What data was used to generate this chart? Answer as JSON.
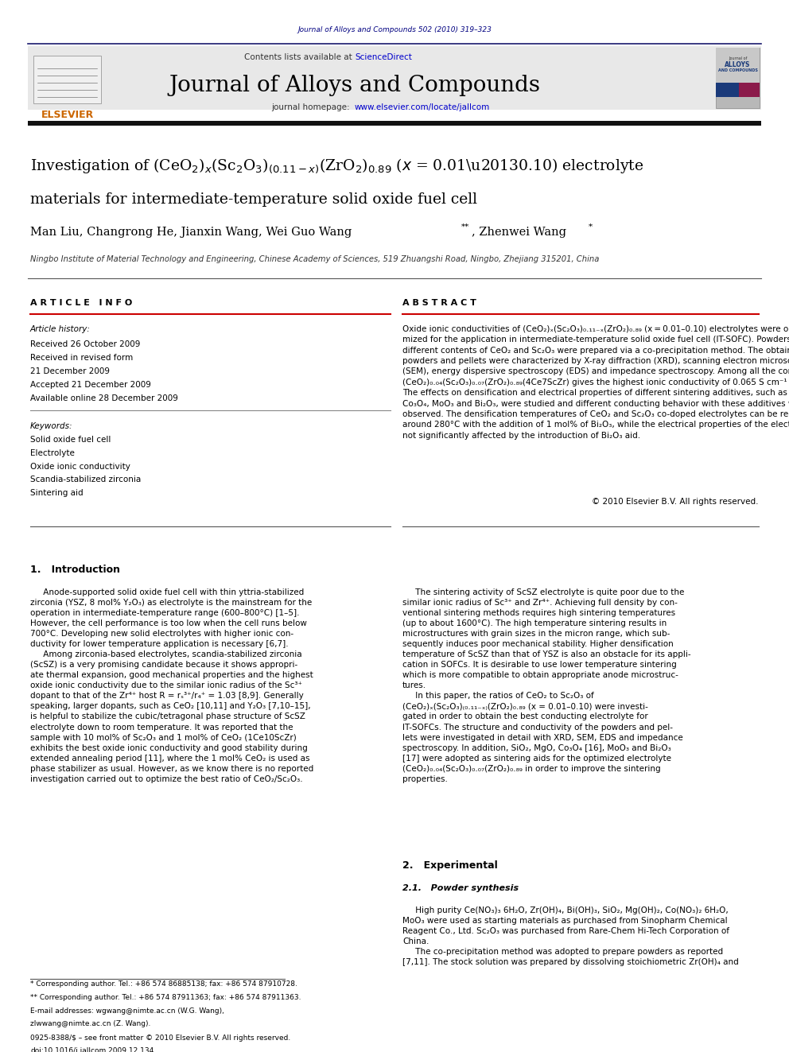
{
  "page_width": 9.92,
  "page_height": 13.23,
  "bg_color": "#ffffff",
  "top_journal_ref": "Journal of Alloys and Compounds 502 (2010) 319–323",
  "top_journal_ref_color": "#000080",
  "header_bg": "#e8e8e8",
  "sciencedirect_color": "#0000cc",
  "journal_title": "Journal of Alloys and Compounds",
  "journal_title_color": "#000000",
  "homepage_url_color": "#0000cc",
  "elsevier_logo_color": "#cc6600",
  "affiliation": "Ningbo Institute of Material Technology and Engineering, Chinese Academy of Sciences, 519 Zhuangshi Road, Ningbo, Zhejiang 315201, China",
  "article_info_title": "A R T I C L E   I N F O",
  "abstract_title": "A B S T R A C T",
  "article_history_label": "Article history:",
  "received_label": "Received 26 October 2009",
  "revised_label": "Received in revised form",
  "revised_date": "21 December 2009",
  "accepted_label": "Accepted 21 December 2009",
  "online_label": "Available online 28 December 2009",
  "keywords_label": "Keywords:",
  "keywords": [
    "Solid oxide fuel cell",
    "Electrolyte",
    "Oxide ionic conductivity",
    "Scandia-stabilized zirconia",
    "Sintering aid"
  ],
  "copyright": "© 2010 Elsevier B.V. All rights reserved.",
  "section1_title": "1.   Introduction",
  "section2_title": "2.   Experimental",
  "section21_title": "2.1.   Powder synthesis",
  "footnote1": "* Corresponding author. Tel.: +86 574 86885138; fax: +86 574 87910728.",
  "footnote2": "** Corresponding author. Tel.: +86 574 87911363; fax: +86 574 87911363.",
  "footnote3": "E-mail addresses: wgwang@nimte.ac.cn (W.G. Wang),",
  "footnote4": "zlwwang@nimte.ac.cn (Z. Wang).",
  "issn_line": "0925-8388/$ – see front matter © 2010 Elsevier B.V. All rights reserved.",
  "doi_line": "doi:10.1016/j.jallcom.2009.12.134"
}
